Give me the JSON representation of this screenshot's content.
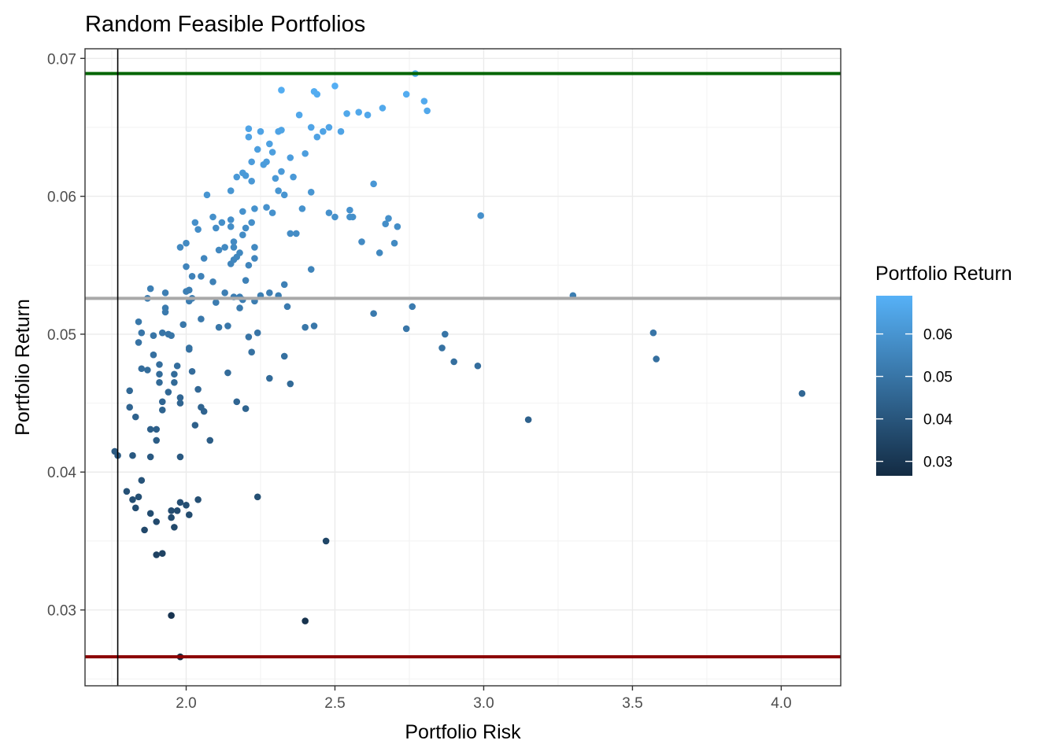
{
  "chart_data": {
    "type": "scatter",
    "title": "Random Feasible Portfolios",
    "xlabel": "Portfolio Risk",
    "ylabel": "Portfolio Return",
    "xlim": [
      1.66,
      4.2
    ],
    "ylim": [
      0.0245,
      0.0707
    ],
    "x_ticks": [
      "2.0",
      "2.5",
      "3.0",
      "3.5",
      "4.0"
    ],
    "y_ticks": [
      "0.03",
      "0.04",
      "0.05",
      "0.06",
      "0.07"
    ],
    "grid": true,
    "legend": {
      "title": "Portfolio Return",
      "placement": "right",
      "type": "colorbar",
      "range": [
        0.0266,
        0.069
      ],
      "ticks": [
        "0.03",
        "0.04",
        "0.05",
        "0.06"
      ],
      "color_low": "#132B43",
      "color_high": "#56B1F7"
    },
    "reference_lines": [
      {
        "orientation": "horizontal",
        "y": 0.0689,
        "color": "#006400"
      },
      {
        "orientation": "horizontal",
        "y": 0.0526,
        "color": "#A9A9A9"
      },
      {
        "orientation": "horizontal",
        "y": 0.0266,
        "color": "#8B0000"
      },
      {
        "orientation": "vertical",
        "x": 1.77,
        "color": "#000000"
      }
    ],
    "points": [
      [
        1.76,
        0.0415
      ],
      [
        1.77,
        0.0412
      ],
      [
        1.8,
        0.0386
      ],
      [
        1.81,
        0.0459
      ],
      [
        1.81,
        0.0447
      ],
      [
        1.82,
        0.0412
      ],
      [
        1.82,
        0.038
      ],
      [
        1.83,
        0.0374
      ],
      [
        1.83,
        0.044
      ],
      [
        1.84,
        0.0494
      ],
      [
        1.84,
        0.0382
      ],
      [
        1.84,
        0.0509
      ],
      [
        1.85,
        0.0475
      ],
      [
        1.85,
        0.0501
      ],
      [
        1.85,
        0.0394
      ],
      [
        1.86,
        0.0358
      ],
      [
        1.87,
        0.0474
      ],
      [
        1.87,
        0.0526
      ],
      [
        1.88,
        0.0533
      ],
      [
        1.88,
        0.037
      ],
      [
        1.88,
        0.0431
      ],
      [
        1.88,
        0.0411
      ],
      [
        1.89,
        0.0499
      ],
      [
        1.89,
        0.0485
      ],
      [
        1.9,
        0.0431
      ],
      [
        1.9,
        0.0423
      ],
      [
        1.9,
        0.034
      ],
      [
        1.9,
        0.0364
      ],
      [
        1.91,
        0.0478
      ],
      [
        1.91,
        0.0465
      ],
      [
        1.91,
        0.0471
      ],
      [
        1.92,
        0.0341
      ],
      [
        1.92,
        0.0451
      ],
      [
        1.92,
        0.0501
      ],
      [
        1.92,
        0.0445
      ],
      [
        1.93,
        0.053
      ],
      [
        1.93,
        0.0516
      ],
      [
        1.93,
        0.0519
      ],
      [
        1.94,
        0.05
      ],
      [
        1.94,
        0.0458
      ],
      [
        1.95,
        0.0367
      ],
      [
        1.95,
        0.0499
      ],
      [
        1.95,
        0.0372
      ],
      [
        1.95,
        0.0296
      ],
      [
        1.96,
        0.036
      ],
      [
        1.96,
        0.0465
      ],
      [
        1.96,
        0.0471
      ],
      [
        1.97,
        0.0372
      ],
      [
        1.97,
        0.0477
      ],
      [
        1.98,
        0.045
      ],
      [
        1.98,
        0.0454
      ],
      [
        1.98,
        0.0411
      ],
      [
        1.98,
        0.0563
      ],
      [
        1.98,
        0.0266
      ],
      [
        1.98,
        0.0378
      ],
      [
        1.99,
        0.0507
      ],
      [
        2.0,
        0.0376
      ],
      [
        2.0,
        0.0531
      ],
      [
        2.0,
        0.0566
      ],
      [
        2.0,
        0.0549
      ],
      [
        2.01,
        0.0369
      ],
      [
        2.01,
        0.0489
      ],
      [
        2.01,
        0.049
      ],
      [
        2.01,
        0.0532
      ],
      [
        2.01,
        0.0524
      ],
      [
        2.02,
        0.0542
      ],
      [
        2.02,
        0.0473
      ],
      [
        2.02,
        0.0526
      ],
      [
        2.03,
        0.0581
      ],
      [
        2.03,
        0.0434
      ],
      [
        2.04,
        0.038
      ],
      [
        2.04,
        0.046
      ],
      [
        2.04,
        0.0576
      ],
      [
        2.05,
        0.0511
      ],
      [
        2.05,
        0.0447
      ],
      [
        2.05,
        0.0542
      ],
      [
        2.06,
        0.0444
      ],
      [
        2.06,
        0.0555
      ],
      [
        2.07,
        0.0601
      ],
      [
        2.08,
        0.0423
      ],
      [
        2.09,
        0.0538
      ],
      [
        2.09,
        0.0585
      ],
      [
        2.1,
        0.0577
      ],
      [
        2.1,
        0.0523
      ],
      [
        2.11,
        0.0505
      ],
      [
        2.11,
        0.0561
      ],
      [
        2.12,
        0.0581
      ],
      [
        2.13,
        0.053
      ],
      [
        2.13,
        0.0563
      ],
      [
        2.14,
        0.0472
      ],
      [
        2.14,
        0.0506
      ],
      [
        2.15,
        0.0604
      ],
      [
        2.15,
        0.0583
      ],
      [
        2.15,
        0.0578
      ],
      [
        2.15,
        0.0551
      ],
      [
        2.16,
        0.0527
      ],
      [
        2.16,
        0.0563
      ],
      [
        2.16,
        0.0554
      ],
      [
        2.16,
        0.0567
      ],
      [
        2.17,
        0.0614
      ],
      [
        2.17,
        0.0451
      ],
      [
        2.17,
        0.0556
      ],
      [
        2.18,
        0.0559
      ],
      [
        2.18,
        0.0527
      ],
      [
        2.18,
        0.0519
      ],
      [
        2.19,
        0.0617
      ],
      [
        2.19,
        0.0572
      ],
      [
        2.19,
        0.0589
      ],
      [
        2.19,
        0.0525
      ],
      [
        2.2,
        0.0615
      ],
      [
        2.2,
        0.0539
      ],
      [
        2.2,
        0.0446
      ],
      [
        2.2,
        0.0577
      ],
      [
        2.21,
        0.0498
      ],
      [
        2.21,
        0.055
      ],
      [
        2.21,
        0.0649
      ],
      [
        2.21,
        0.0643
      ],
      [
        2.22,
        0.0611
      ],
      [
        2.22,
        0.0487
      ],
      [
        2.22,
        0.0581
      ],
      [
        2.22,
        0.0625
      ],
      [
        2.23,
        0.0591
      ],
      [
        2.23,
        0.0524
      ],
      [
        2.23,
        0.0563
      ],
      [
        2.23,
        0.0555
      ],
      [
        2.24,
        0.0382
      ],
      [
        2.24,
        0.0634
      ],
      [
        2.24,
        0.0501
      ],
      [
        2.25,
        0.0528
      ],
      [
        2.25,
        0.0647
      ],
      [
        2.26,
        0.0623
      ],
      [
        2.27,
        0.0625
      ],
      [
        2.27,
        0.0592
      ],
      [
        2.28,
        0.053
      ],
      [
        2.28,
        0.0638
      ],
      [
        2.28,
        0.0468
      ],
      [
        2.29,
        0.0588
      ],
      [
        2.29,
        0.0632
      ],
      [
        2.3,
        0.0613
      ],
      [
        2.31,
        0.0528
      ],
      [
        2.31,
        0.0604
      ],
      [
        2.31,
        0.0647
      ],
      [
        2.32,
        0.0648
      ],
      [
        2.32,
        0.0677
      ],
      [
        2.32,
        0.0618
      ],
      [
        2.33,
        0.0536
      ],
      [
        2.33,
        0.0601
      ],
      [
        2.33,
        0.0484
      ],
      [
        2.34,
        0.052
      ],
      [
        2.35,
        0.0573
      ],
      [
        2.35,
        0.0464
      ],
      [
        2.35,
        0.0628
      ],
      [
        2.36,
        0.0614
      ],
      [
        2.37,
        0.0573
      ],
      [
        2.38,
        0.0659
      ],
      [
        2.39,
        0.0591
      ],
      [
        2.4,
        0.0292
      ],
      [
        2.4,
        0.0631
      ],
      [
        2.4,
        0.0505
      ],
      [
        2.42,
        0.0603
      ],
      [
        2.42,
        0.0547
      ],
      [
        2.42,
        0.065
      ],
      [
        2.43,
        0.0676
      ],
      [
        2.43,
        0.0506
      ],
      [
        2.44,
        0.0674
      ],
      [
        2.44,
        0.0643
      ],
      [
        2.46,
        0.0647
      ],
      [
        2.47,
        0.035
      ],
      [
        2.48,
        0.0588
      ],
      [
        2.48,
        0.065
      ],
      [
        2.5,
        0.0585
      ],
      [
        2.5,
        0.068
      ],
      [
        2.52,
        0.0647
      ],
      [
        2.54,
        0.066
      ],
      [
        2.55,
        0.059
      ],
      [
        2.55,
        0.0585
      ],
      [
        2.56,
        0.0585
      ],
      [
        2.58,
        0.0661
      ],
      [
        2.59,
        0.0567
      ],
      [
        2.61,
        0.0659
      ],
      [
        2.63,
        0.0609
      ],
      [
        2.63,
        0.0515
      ],
      [
        2.65,
        0.0559
      ],
      [
        2.66,
        0.0664
      ],
      [
        2.67,
        0.058
      ],
      [
        2.68,
        0.0584
      ],
      [
        2.7,
        0.0566
      ],
      [
        2.71,
        0.0578
      ],
      [
        2.74,
        0.0504
      ],
      [
        2.74,
        0.0674
      ],
      [
        2.76,
        0.052
      ],
      [
        2.77,
        0.0689
      ],
      [
        2.8,
        0.0669
      ],
      [
        2.81,
        0.0662
      ],
      [
        2.86,
        0.049
      ],
      [
        2.87,
        0.05
      ],
      [
        2.9,
        0.048
      ],
      [
        2.98,
        0.0477
      ],
      [
        2.99,
        0.0586
      ],
      [
        3.15,
        0.0438
      ],
      [
        3.3,
        0.0528
      ],
      [
        3.57,
        0.0501
      ],
      [
        3.58,
        0.0482
      ],
      [
        4.07,
        0.0457
      ]
    ]
  }
}
